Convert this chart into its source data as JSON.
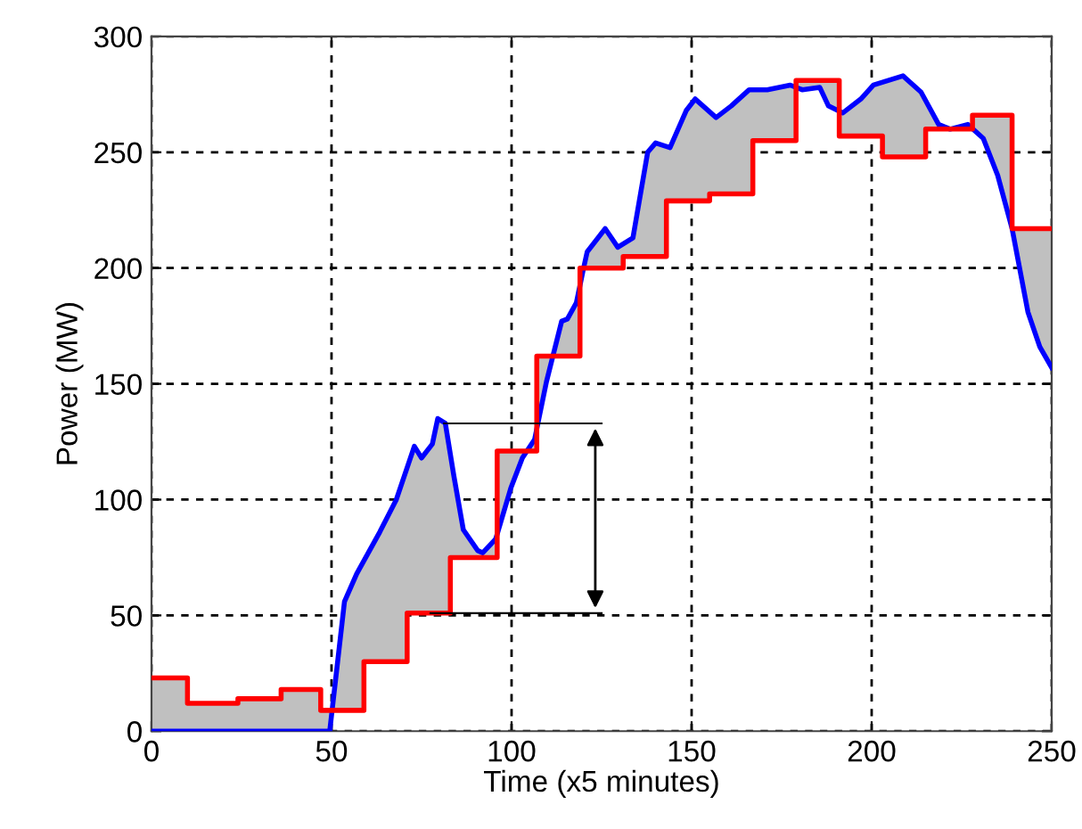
{
  "chart_data": {
    "type": "line",
    "xlabel": "Time (x5 minutes)",
    "ylabel": "Power (MW)",
    "xlim": [
      0,
      250
    ],
    "ylim": [
      0,
      300
    ],
    "xticks": [
      0,
      50,
      100,
      150,
      200,
      250
    ],
    "yticks": [
      0,
      50,
      100,
      150,
      200,
      250,
      300
    ],
    "grid": true,
    "line_style": "solid",
    "series": [
      {
        "color": "#0000ff",
        "x": [
          0,
          49.5,
          53.6,
          57,
          63.4,
          68,
          73,
          75,
          78,
          79.5,
          81.6,
          84,
          86.6,
          90.6,
          92,
          95.6,
          99.8,
          103,
          106.4,
          109.7,
          113.9,
          115.5,
          118,
          120,
          121,
          126,
          129.5,
          133.7,
          137.8,
          140,
          144,
          148.5,
          151,
          156.8,
          161,
          166,
          171,
          177.4,
          180.7,
          185.6,
          188,
          192,
          197,
          200.5,
          208.7,
          213.7,
          218.6,
          221.8,
          226.7,
          231,
          235,
          239,
          243.4,
          246.7,
          250
        ],
        "values": [
          0,
          0,
          56,
          68,
          86,
          100,
          123,
          118,
          124,
          135,
          133,
          110,
          87,
          78,
          77,
          83,
          105,
          118,
          126,
          151,
          177,
          178,
          185,
          200,
          207,
          217,
          209,
          213,
          250,
          254,
          252,
          268,
          273,
          265,
          270,
          277,
          277,
          279,
          277,
          278,
          270,
          267,
          273,
          279,
          283,
          276,
          262,
          260,
          262,
          256,
          240,
          217,
          181,
          166,
          157
        ]
      },
      {
        "type": "step",
        "color": "#ff0000",
        "x": [
          0,
          10,
          24,
          36,
          47,
          59,
          71,
          83,
          96,
          107,
          119,
          131,
          143,
          155,
          167,
          179,
          191,
          203,
          215,
          228,
          239,
          250
        ],
        "values": [
          23,
          12,
          14,
          18,
          9,
          30,
          51,
          75,
          121,
          162,
          200,
          205,
          229,
          232,
          255,
          281,
          257,
          248,
          260,
          266,
          217,
          217
        ]
      }
    ]
  }
}
